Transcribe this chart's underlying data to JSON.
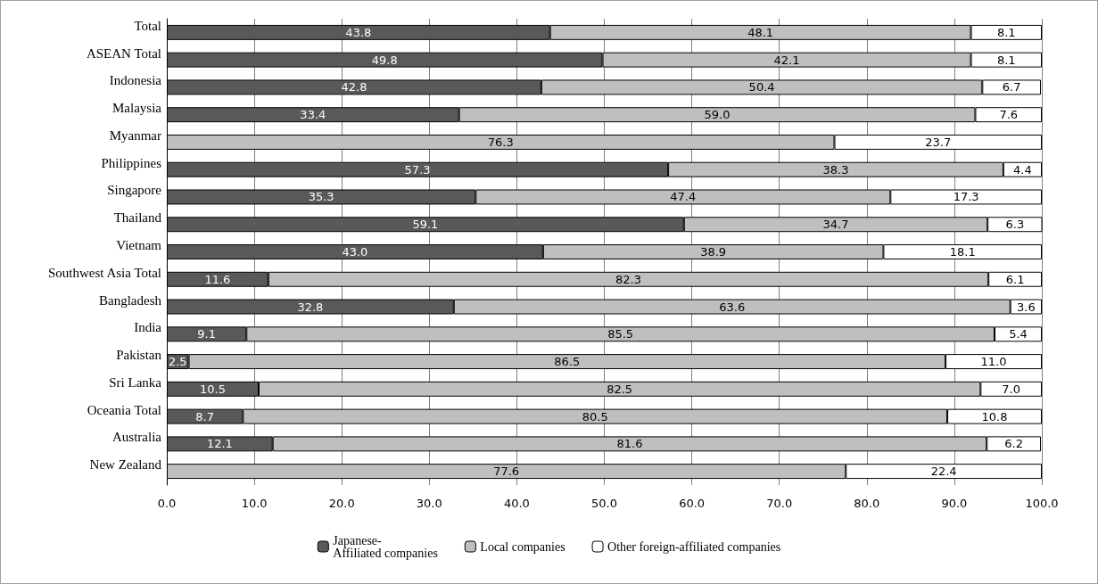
{
  "chart_data": {
    "type": "bar",
    "orientation": "horizontal",
    "stacked": true,
    "categories": [
      "Total",
      "ASEAN Total",
      "Indonesia",
      "Malaysia",
      "Myanmar",
      "Philippines",
      "Singapore",
      "Thailand",
      "Vietnam",
      "Southwest Asia Total",
      "Bangladesh",
      "India",
      "Pakistan",
      "Sri Lanka",
      "Oceania Total",
      "Australia",
      "New Zealand"
    ],
    "series": [
      {
        "name": "Japanese-\nAffiliated companies",
        "color": "#595959",
        "values": [
          43.8,
          49.8,
          42.8,
          33.4,
          null,
          57.3,
          35.3,
          59.1,
          43.0,
          11.6,
          32.8,
          9.1,
          2.5,
          10.5,
          8.7,
          12.1,
          null
        ],
        "value_labels": [
          "43.8",
          "49.8",
          "42.8",
          "33.4",
          null,
          "57.3",
          "35.3",
          "59.1",
          "43.0",
          "11.6",
          "32.8",
          "9.1",
          "2.5",
          "10.5",
          "8.7",
          "12.1",
          null
        ]
      },
      {
        "name": "Local companies",
        "color": "#bfbfbf",
        "values": [
          48.1,
          42.1,
          50.4,
          59.0,
          76.3,
          38.3,
          47.4,
          34.7,
          38.9,
          82.3,
          63.6,
          85.5,
          86.5,
          82.5,
          80.5,
          81.6,
          77.6
        ],
        "value_labels": [
          "48.1",
          "42.1",
          "50.4",
          "59.0",
          "76.3",
          "38.3",
          "47.4",
          "34.7",
          "38.9",
          "82.3",
          "63.6",
          "85.5",
          "86.5",
          "82.5",
          "80.5",
          "81.6",
          "77.6"
        ]
      },
      {
        "name": "Other foreign-affiliated companies",
        "color": "#ffffff",
        "values": [
          8.1,
          8.1,
          6.7,
          7.6,
          23.7,
          4.4,
          17.3,
          6.3,
          18.1,
          6.1,
          3.6,
          5.4,
          11.0,
          7.0,
          10.8,
          6.2,
          22.4
        ],
        "value_labels": [
          "8.1",
          "8.1",
          "6.7",
          "7.6",
          "23.7",
          "4.4",
          "17.3",
          "6.3",
          "18.1",
          "6.1",
          "3.6",
          "5.4",
          "11.0",
          "7.0",
          "10.8",
          "6.2",
          "22.4"
        ]
      }
    ],
    "xlim": [
      0,
      100
    ],
    "xticks": [
      {
        "value": 0,
        "label": "0.0"
      },
      {
        "value": 10,
        "label": "10.0"
      },
      {
        "value": 20,
        "label": "20.0"
      },
      {
        "value": 30,
        "label": "30.0"
      },
      {
        "value": 40,
        "label": "40.0"
      },
      {
        "value": 50,
        "label": "50.0"
      },
      {
        "value": 60,
        "label": "60.0"
      },
      {
        "value": 70,
        "label": "70.0"
      },
      {
        "value": 80,
        "label": "80.0"
      },
      {
        "value": 90,
        "label": "90.0"
      },
      {
        "value": 100,
        "label": "100.0"
      }
    ],
    "grid": "x",
    "legend": "bottom"
  }
}
